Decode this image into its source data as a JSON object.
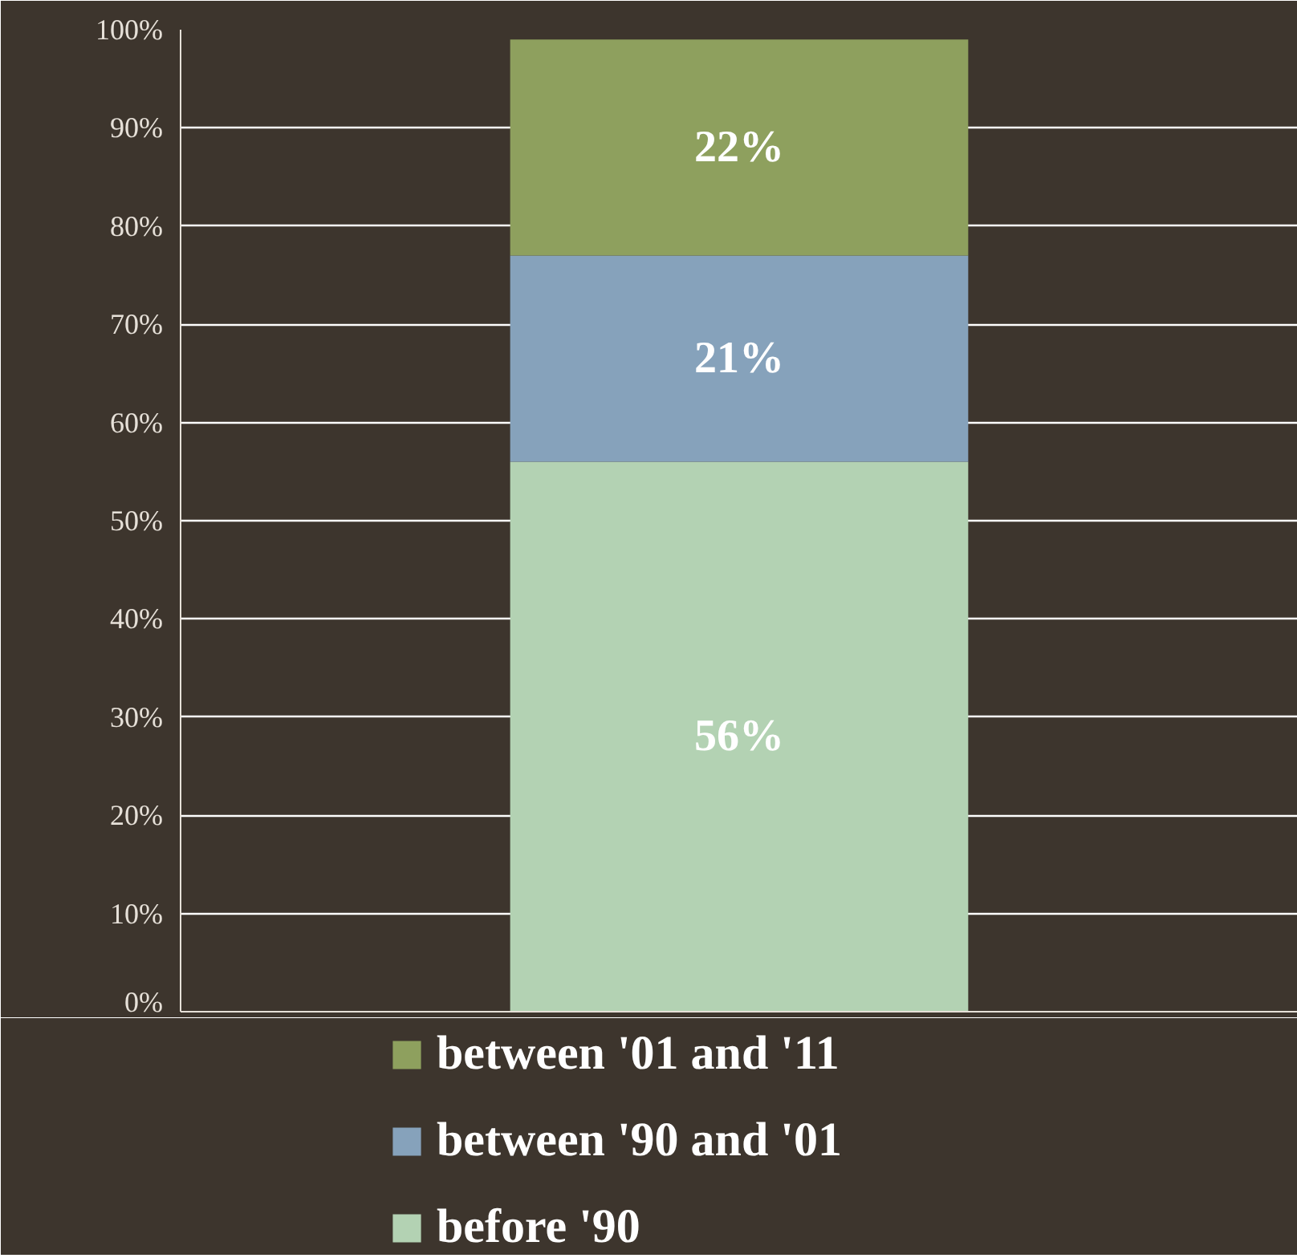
{
  "chart_data": {
    "type": "bar",
    "stacked": true,
    "categories": [
      null
    ],
    "series": [
      {
        "name": "before '90",
        "color": "#b3d2b3",
        "values": [
          56
        ]
      },
      {
        "name": "between '90 and '01",
        "color": "#86a2bb",
        "values": [
          21
        ]
      },
      {
        "name": "between '01 and '11",
        "color": "#8ea05e",
        "values": [
          22
        ]
      }
    ],
    "ylim": [
      0,
      100
    ],
    "yticks": [
      {
        "value": 0,
        "label": "0%"
      },
      {
        "value": 10,
        "label": "10%"
      },
      {
        "value": 20,
        "label": "20%"
      },
      {
        "value": 30,
        "label": "30%"
      },
      {
        "value": 40,
        "label": "40%"
      },
      {
        "value": 50,
        "label": "50%"
      },
      {
        "value": 60,
        "label": "60%"
      },
      {
        "value": 70,
        "label": "70%"
      },
      {
        "value": 80,
        "label": "80%"
      },
      {
        "value": 90,
        "label": "90%"
      },
      {
        "value": 100,
        "label": "100%"
      }
    ],
    "value_labels": [
      "56%",
      "21%",
      "22%"
    ],
    "grid": "y",
    "legend": "bottom"
  }
}
